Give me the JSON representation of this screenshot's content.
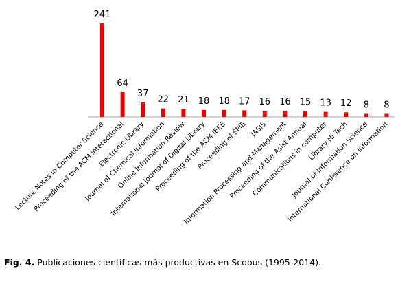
{
  "chart_data": {
    "type": "bar",
    "categories": [
      "Lecture Notes in Computer Science",
      "Proceeding of the ACM Interactional",
      "Electronic Library",
      "Journal of Chemical Information",
      "Online Information Review",
      "International Journal of Digital Library",
      "Proceeding of the ACM IEEE",
      "Proceeding of SPIE",
      "JASIS",
      "Information Processing and Management",
      "Proceeding of the Asist Annual",
      "Communications in computer",
      "Library Hi Tech",
      "Journal of Information Science",
      "International Conference on Information"
    ],
    "values": [
      241,
      64,
      37,
      22,
      21,
      18,
      18,
      17,
      16,
      16,
      15,
      13,
      12,
      8,
      8
    ],
    "ylim": [
      0,
      241
    ],
    "grid": false,
    "legend": "none",
    "bar_color": "#ee0000"
  },
  "caption": {
    "label": "Fig. 4.",
    "text": " Publicaciones científicas más productivas en Scopus (1995-2014)."
  }
}
